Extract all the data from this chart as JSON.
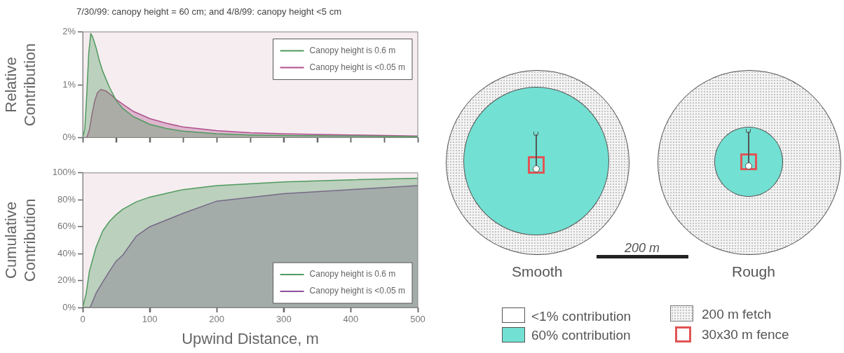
{
  "chart_data": [
    {
      "type": "area",
      "title": "7/30/99: canopy height = 60 cm; and 4/8/99: canopy height <5 cm",
      "ylabel": "Relative Contribution",
      "xlim": [
        0,
        500
      ],
      "xticks": [
        {
          "value": 0,
          "label": null
        },
        {
          "value": 50,
          "label": null
        },
        {
          "value": 100,
          "label": null
        },
        {
          "value": 150,
          "label": null
        },
        {
          "value": 200,
          "label": null
        },
        {
          "value": 250,
          "label": null
        },
        {
          "value": 300,
          "label": null
        },
        {
          "value": 350,
          "label": null
        },
        {
          "value": 400,
          "label": null
        },
        {
          "value": 450,
          "label": null
        },
        {
          "value": 500,
          "label": null
        }
      ],
      "ylim": [
        0,
        2
      ],
      "yticks": [
        {
          "value": 0,
          "label": "0%"
        },
        {
          "value": 1,
          "label": "1%"
        },
        {
          "value": 2,
          "label": "2%"
        }
      ],
      "tick_labels": "y",
      "grid": false,
      "legend": "top right",
      "series": [
        {
          "name": "Canopy height is 0.6 m",
          "color": "#4f9a5e",
          "x": [
            0,
            3,
            6,
            9,
            12,
            15,
            20,
            25,
            30,
            40,
            50,
            60,
            75,
            100,
            125,
            150,
            200,
            250,
            300,
            400,
            500
          ],
          "values": [
            0,
            0.15,
            0.8,
            1.6,
            1.97,
            1.9,
            1.7,
            1.45,
            1.25,
            0.95,
            0.7,
            0.55,
            0.4,
            0.25,
            0.17,
            0.12,
            0.07,
            0.05,
            0.04,
            0.03,
            0.02
          ]
        },
        {
          "name": "Canopy height is <0.05 m",
          "color": "#b0508c",
          "x": [
            0,
            6,
            10,
            14,
            18,
            22,
            27,
            35,
            43,
            50,
            60,
            75,
            100,
            125,
            150,
            200,
            250,
            300,
            400,
            500
          ],
          "values": [
            0,
            0,
            0.15,
            0.45,
            0.7,
            0.85,
            0.91,
            0.88,
            0.8,
            0.72,
            0.63,
            0.5,
            0.36,
            0.27,
            0.2,
            0.13,
            0.09,
            0.07,
            0.05,
            0.03
          ]
        }
      ]
    },
    {
      "type": "area",
      "xlabel": "Upwind Distance, m",
      "ylabel": "Cumulative Contribution",
      "xlim": [
        0,
        500
      ],
      "xticks": [
        0,
        100,
        200,
        300,
        400,
        500
      ],
      "ylim": [
        0,
        100
      ],
      "yticks": [
        {
          "value": 0,
          "label": "0%"
        },
        {
          "value": 20,
          "label": "20%"
        },
        {
          "value": 40,
          "label": "40%"
        },
        {
          "value": 60,
          "label": "60%"
        },
        {
          "value": 80,
          "label": "80%"
        },
        {
          "value": 100,
          "label": "100%"
        }
      ],
      "grid": false,
      "legend": "bottom right",
      "series": [
        {
          "name": "Canopy height is 0.6 m",
          "color": "#4f9a5e",
          "x": [
            0,
            5,
            10,
            20,
            30,
            40,
            50,
            60,
            80,
            100,
            150,
            200,
            300,
            400,
            500
          ],
          "values": [
            0,
            10,
            27,
            45,
            57,
            64,
            69,
            73,
            78.5,
            82,
            87.6,
            90.5,
            93.3,
            94.8,
            96
          ]
        },
        {
          "name": "Canopy height is <0.05 m",
          "color": "#8b4f9b",
          "x": [
            0,
            11,
            20,
            30,
            40,
            50,
            60,
            80,
            100,
            150,
            200,
            300,
            400,
            500
          ],
          "values": [
            0,
            0,
            10.7,
            19,
            27,
            34.5,
            39,
            53,
            60,
            70,
            79,
            84.5,
            87.6,
            90.5
          ]
        }
      ]
    },
    {
      "type": "other",
      "annotations": [
        "Smooth",
        "Rough",
        "200 m",
        "<1% contribution",
        "60% contribution",
        "200 m fetch",
        "30x30 m fence"
      ]
    }
  ]
}
